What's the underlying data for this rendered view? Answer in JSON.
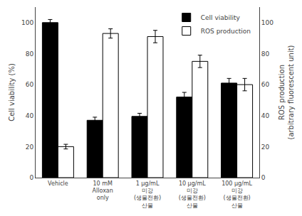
{
  "chart_data": {
    "type": "bar",
    "categories": [
      "Vehicle",
      "10 mM\nAlloxan\nonly",
      "1 μg/mL\n미강\n(생물전환)\n산물",
      "10 μg/mL\n미강\n(생물전환)\n산물",
      "100 μg/mL\n미강\n(생물전환)\n산물"
    ],
    "series": [
      {
        "name": "Cell viability",
        "color": "black",
        "values": [
          100,
          37,
          39.5,
          52,
          61
        ],
        "errors": [
          2,
          2,
          2,
          3,
          3
        ]
      },
      {
        "name": "ROS production",
        "color": "white",
        "values": [
          20,
          93,
          91,
          75,
          60
        ],
        "errors": [
          1.5,
          3,
          4,
          4,
          4
        ],
        "axis": "y2"
      }
    ],
    "ylabel": "Cell viability (%)",
    "y2label": "ROS production\n(arbitrary fluorescent unit)",
    "ylim": [
      0,
      110
    ],
    "yticks": [
      0,
      20,
      40,
      60,
      80,
      100
    ],
    "y2lim": [
      0,
      110
    ],
    "y2ticks": [
      0,
      20,
      40,
      60,
      80,
      100
    ],
    "legend": "upper right",
    "grid": false
  }
}
